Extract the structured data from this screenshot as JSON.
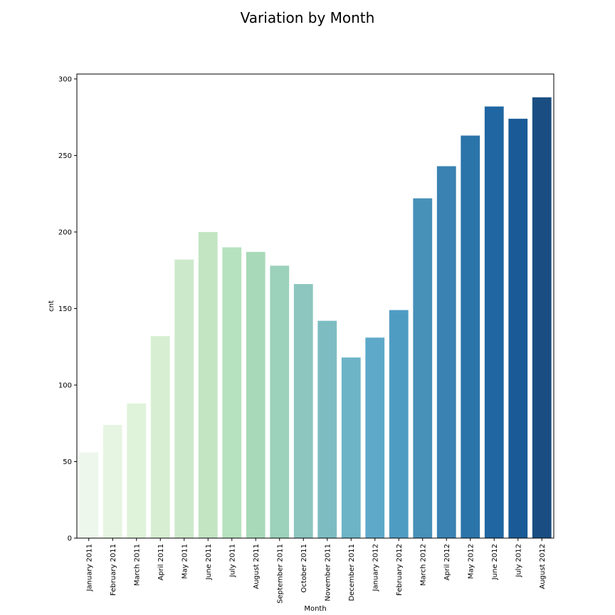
{
  "chart_data": {
    "type": "bar",
    "title": "Variation by Month",
    "xlabel": "Month",
    "ylabel": "cnt",
    "ylim": [
      0,
      300
    ],
    "yticks": [
      0,
      50,
      100,
      150,
      200,
      250,
      300
    ],
    "categories": [
      "January 2011",
      "February 2011",
      "March 2011",
      "April 2011",
      "May 2011",
      "June 2011",
      "July 2011",
      "August 2011",
      "September 2011",
      "October 2011",
      "November 2011",
      "December 2011",
      "January 2012",
      "February 2012",
      "March 2012",
      "April 2012",
      "May 2012",
      "June 2012",
      "July 2012",
      "August 2012"
    ],
    "values": [
      56,
      74,
      88,
      132,
      182,
      200,
      190,
      187,
      178,
      166,
      142,
      118,
      131,
      149,
      222,
      243,
      263,
      282,
      274,
      288
    ],
    "colors": [
      "#eef7ec",
      "#e6f5e1",
      "#dff2da",
      "#d7eed3",
      "#cde9cb",
      "#c3e5c2",
      "#b7e2bf",
      "#a8dab9",
      "#9cd1bb",
      "#8cc6bf",
      "#7dbdc1",
      "#6db4c7",
      "#5ea9c9",
      "#4f9cc3",
      "#4790b8",
      "#3982b2",
      "#2b74aa",
      "#1f66a2",
      "#1a5a96",
      "#1a4e82"
    ],
    "grid": false,
    "legend": "none"
  }
}
